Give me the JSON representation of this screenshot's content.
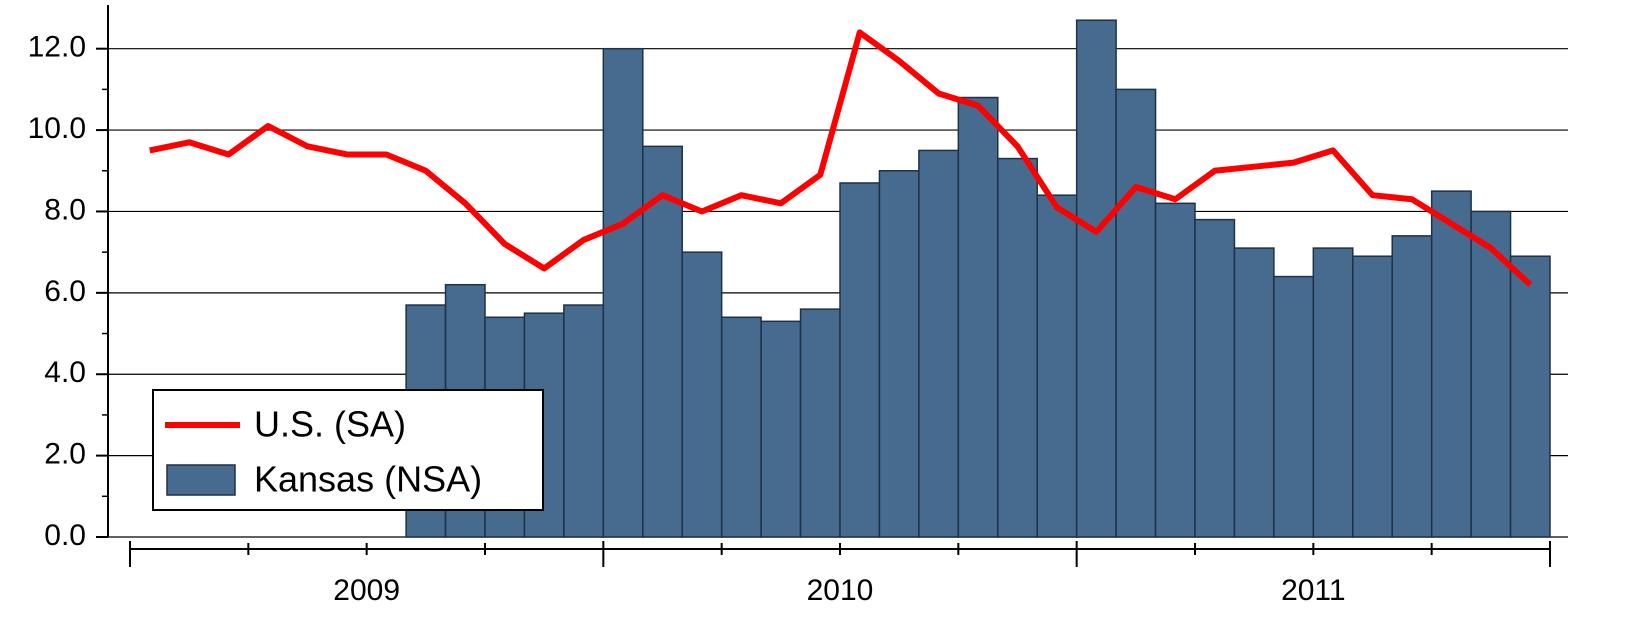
{
  "chart_data": {
    "type": "bar-line",
    "categories": [
      null,
      null,
      null,
      null,
      null,
      null,
      null,
      null,
      null,
      null,
      null,
      null,
      null,
      null,
      null,
      null,
      null,
      null,
      null,
      null,
      null,
      null,
      null,
      null,
      null,
      null,
      null,
      null,
      null,
      null,
      null,
      null,
      null,
      null,
      null,
      null
    ],
    "x_groups": [
      "2009",
      "2010",
      "2011"
    ],
    "series": [
      {
        "name": "U.S. (SA)",
        "type": "line",
        "color": "#ff0000",
        "values": [
          9.5,
          9.7,
          9.4,
          10.1,
          9.6,
          9.4,
          9.4,
          9.0,
          8.2,
          7.2,
          6.6,
          7.3,
          7.7,
          8.4,
          8.0,
          8.4,
          8.2,
          8.9,
          12.4,
          11.7,
          10.9,
          10.6,
          9.6,
          8.1,
          7.5,
          8.6,
          8.3,
          9.0,
          9.1,
          9.2,
          9.5,
          8.4,
          8.3,
          7.7,
          7.1,
          6.2
        ]
      },
      {
        "name": "Kansas (NSA)",
        "type": "bar",
        "color": "#476b8e",
        "values": [
          null,
          null,
          null,
          null,
          null,
          null,
          null,
          5.7,
          6.2,
          5.4,
          5.5,
          5.7,
          12.0,
          9.6,
          7.0,
          5.4,
          5.3,
          5.6,
          8.7,
          9.0,
          9.5,
          10.8,
          9.3,
          8.4,
          12.7,
          11.0,
          8.2,
          7.8,
          7.1,
          6.4,
          7.1,
          6.9,
          7.4,
          8.5,
          8.0,
          6.9
        ]
      }
    ],
    "ylim": [
      0,
      13
    ],
    "yticks": [
      {
        "value": 0,
        "label": "0.0"
      },
      {
        "value": 2,
        "label": "2.0"
      },
      {
        "value": 4,
        "label": "4.0"
      },
      {
        "value": 6,
        "label": "6.0"
      },
      {
        "value": 8,
        "label": "8.0"
      },
      {
        "value": 10,
        "label": "10.0"
      },
      {
        "value": 12,
        "label": "12.0"
      }
    ],
    "grid": true,
    "legend": "lower left"
  }
}
